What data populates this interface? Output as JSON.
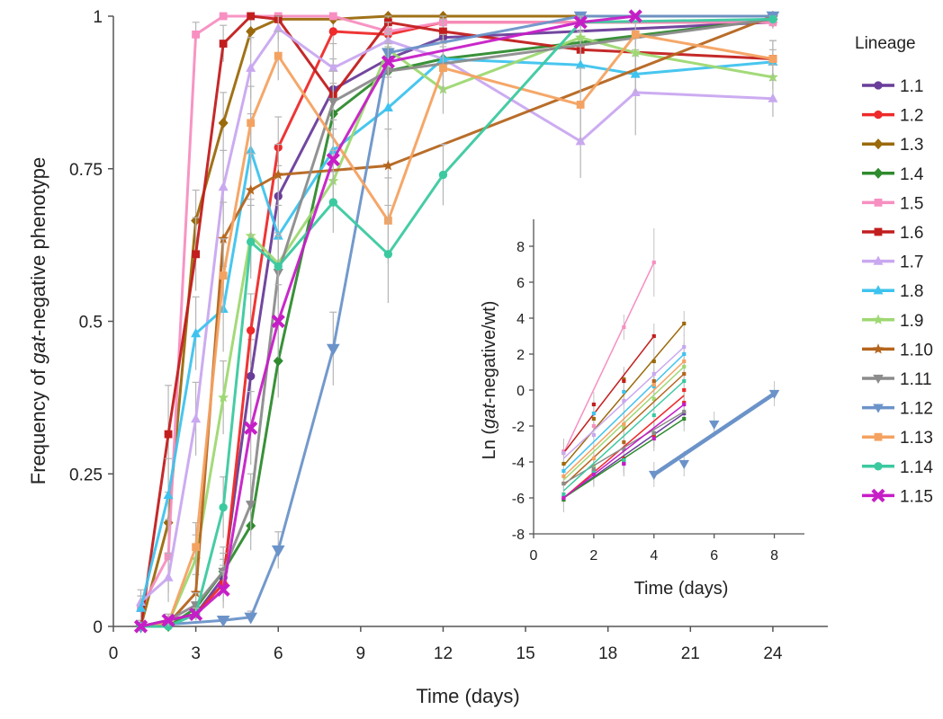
{
  "chart_data": [
    {
      "type": "line",
      "xlabel": "Time (days)",
      "ylabel_parts": [
        "Frequency of ",
        "gat",
        "-negative phenotype"
      ],
      "xlim": [
        0,
        26
      ],
      "ylim": [
        0,
        1
      ],
      "xticks": [
        0,
        3,
        6,
        9,
        12,
        15,
        18,
        21,
        24
      ],
      "yticks": [
        0,
        0.25,
        0.5,
        0.75,
        1
      ],
      "ytick_labels": [
        "0",
        "0.25",
        "0.5",
        "0.75",
        "1"
      ],
      "legend_title": "Lineage",
      "legend_position": "right",
      "series": [
        {
          "name": "1.1",
          "color": "#6a3d9a",
          "marker": "circle",
          "x": [
            1,
            2,
            3,
            4,
            5,
            6,
            8,
            10,
            12,
            24
          ],
          "y": [
            0.0,
            0.01,
            0.02,
            0.08,
            0.41,
            0.705,
            0.88,
            0.93,
            0.965,
            0.99
          ],
          "err": [
            0.005,
            0.01,
            0.01,
            0.03,
            0.06,
            0.05,
            0.05,
            0.03,
            0.02,
            0.01
          ]
        },
        {
          "name": "1.2",
          "color": "#ee2a2a",
          "marker": "circle",
          "x": [
            1,
            2,
            3,
            4,
            5,
            6,
            8,
            10,
            12,
            24
          ],
          "y": [
            0.0,
            0.01,
            0.02,
            0.07,
            0.485,
            0.785,
            0.975,
            0.97,
            0.99,
            0.99
          ],
          "err": [
            0.005,
            0.01,
            0.01,
            0.03,
            0.06,
            0.05,
            0.02,
            0.02,
            0.01,
            0.01
          ]
        },
        {
          "name": "1.3",
          "color": "#9b6a0c",
          "marker": "diamond",
          "x": [
            1,
            2,
            3,
            4,
            5,
            6,
            8,
            10,
            12,
            24
          ],
          "y": [
            0.0,
            0.17,
            0.665,
            0.825,
            0.975,
            0.995,
            0.995,
            1.0,
            1.0,
            1.0
          ],
          "err": [
            0.01,
            0.05,
            0.05,
            0.05,
            0.02,
            0.01,
            0.01,
            0.0,
            0.0,
            0.0
          ]
        },
        {
          "name": "1.4",
          "color": "#2e8b2e",
          "marker": "diamond",
          "x": [
            1,
            2,
            3,
            4,
            5,
            6,
            8,
            10,
            12,
            24
          ],
          "y": [
            0.0,
            0.0,
            0.03,
            0.09,
            0.165,
            0.435,
            0.84,
            0.91,
            0.93,
            0.995
          ],
          "err": [
            0.005,
            0.005,
            0.01,
            0.03,
            0.04,
            0.06,
            0.05,
            0.03,
            0.02,
            0.01
          ]
        },
        {
          "name": "1.5",
          "color": "#f78fc1",
          "marker": "square",
          "x": [
            1,
            2,
            3,
            4,
            5,
            6,
            8,
            10,
            12,
            24
          ],
          "y": [
            0.03,
            0.115,
            0.97,
            1.0,
            1.0,
            1.0,
            1.0,
            0.975,
            0.99,
            0.99
          ],
          "err": [
            0.02,
            0.06,
            0.02,
            0.0,
            0.0,
            0.0,
            0.0,
            0.02,
            0.01,
            0.01
          ]
        },
        {
          "name": "1.6",
          "color": "#c21e1e",
          "marker": "square",
          "x": [
            1,
            2,
            3,
            4,
            5,
            6,
            8,
            10,
            12,
            17,
            24
          ],
          "y": [
            0.0,
            0.315,
            0.61,
            0.955,
            1.0,
            0.995,
            0.87,
            0.99,
            0.975,
            0.945,
            0.93
          ],
          "err": [
            0.01,
            0.08,
            0.06,
            0.03,
            0.0,
            0.01,
            0.05,
            0.01,
            0.02,
            0.03,
            0.03
          ]
        },
        {
          "name": "1.7",
          "color": "#c9a8f0",
          "marker": "triangle",
          "x": [
            1,
            2,
            3,
            4,
            5,
            6,
            8,
            10,
            12,
            17,
            19,
            24
          ],
          "y": [
            0.04,
            0.08,
            0.34,
            0.72,
            0.915,
            0.98,
            0.915,
            0.96,
            0.93,
            0.795,
            0.875,
            0.865
          ],
          "err": [
            0.02,
            0.04,
            0.06,
            0.06,
            0.05,
            0.02,
            0.04,
            0.03,
            0.04,
            0.06,
            0.07,
            0.03
          ]
        },
        {
          "name": "1.8",
          "color": "#3ec3ee",
          "marker": "triangle",
          "x": [
            1,
            2,
            3,
            4,
            5,
            6,
            8,
            10,
            12,
            17,
            19,
            24
          ],
          "y": [
            0.03,
            0.215,
            0.48,
            0.52,
            0.78,
            0.64,
            0.78,
            0.85,
            0.93,
            0.92,
            0.905,
            0.925
          ],
          "err": [
            0.02,
            0.06,
            0.06,
            0.07,
            0.06,
            0.05,
            0.05,
            0.05,
            0.03,
            0.03,
            0.03,
            0.02
          ]
        },
        {
          "name": "1.9",
          "color": "#9ed872",
          "marker": "star",
          "x": [
            1,
            2,
            3,
            4,
            5,
            6,
            8,
            10,
            12,
            17,
            19,
            24
          ],
          "y": [
            0.0,
            0.005,
            0.11,
            0.375,
            0.64,
            0.595,
            0.73,
            0.945,
            0.88,
            0.965,
            0.94,
            0.9
          ],
          "err": [
            0.005,
            0.01,
            0.04,
            0.06,
            0.06,
            0.05,
            0.05,
            0.03,
            0.04,
            0.02,
            0.03,
            0.02
          ]
        },
        {
          "name": "1.10",
          "color": "#b5651d",
          "marker": "star",
          "x": [
            1,
            2,
            3,
            4,
            5,
            6,
            10,
            24
          ],
          "y": [
            0.0,
            0.005,
            0.055,
            0.635,
            0.715,
            0.74,
            0.755,
            1.0
          ],
          "err": [
            0.005,
            0.01,
            0.03,
            0.06,
            0.06,
            0.05,
            0.06,
            0.0
          ]
        },
        {
          "name": "1.11",
          "color": "#8c8c8c",
          "marker": "down-triangle",
          "x": [
            1,
            2,
            3,
            4,
            5,
            6,
            8,
            10,
            24
          ],
          "y": [
            0.0,
            0.01,
            0.035,
            0.09,
            0.2,
            0.58,
            0.86,
            0.91,
            0.995
          ],
          "err": [
            0.005,
            0.01,
            0.02,
            0.04,
            0.05,
            0.06,
            0.05,
            0.04,
            0.01
          ]
        },
        {
          "name": "1.12",
          "color": "#6b93c9",
          "marker": "down-triangle",
          "x": [
            1,
            4,
            5,
            6,
            8,
            10,
            17,
            24
          ],
          "y": [
            0.0,
            0.01,
            0.015,
            0.125,
            0.455,
            0.94,
            1.0,
            1.0
          ],
          "err": [
            0.005,
            0.005,
            0.01,
            0.03,
            0.06,
            0.03,
            0.0,
            0.0
          ]
        },
        {
          "name": "1.13",
          "color": "#f4a261",
          "marker": "square",
          "x": [
            1,
            2,
            3,
            4,
            5,
            6,
            10,
            12,
            17,
            19,
            24
          ],
          "y": [
            0.0,
            0.005,
            0.13,
            0.575,
            0.825,
            0.935,
            0.665,
            0.915,
            0.855,
            0.97,
            0.93
          ],
          "err": [
            0.005,
            0.01,
            0.04,
            0.06,
            0.06,
            0.04,
            0.07,
            0.04,
            0.06,
            0.02,
            0.03
          ]
        },
        {
          "name": "1.14",
          "color": "#3cc9a0",
          "marker": "circle",
          "x": [
            1,
            2,
            3,
            4,
            5,
            6,
            8,
            10,
            12,
            17,
            24
          ],
          "y": [
            0.0,
            0.0,
            0.02,
            0.195,
            0.63,
            0.59,
            0.695,
            0.61,
            0.74,
            0.99,
            0.995
          ],
          "err": [
            0.005,
            0.005,
            0.01,
            0.05,
            0.06,
            0.05,
            0.05,
            0.08,
            0.05,
            0.01,
            0.01
          ]
        },
        {
          "name": "1.15",
          "color": "#c61ec6",
          "marker": "x",
          "x": [
            1,
            2,
            3,
            4,
            5,
            6,
            8,
            10,
            17,
            19
          ],
          "y": [
            0.0,
            0.01,
            0.02,
            0.06,
            0.325,
            0.5,
            0.765,
            0.925,
            0.99,
            1.0
          ],
          "err": [
            0.005,
            0.01,
            0.01,
            0.03,
            0.06,
            0.06,
            0.05,
            0.03,
            0.01,
            0.0
          ]
        }
      ]
    },
    {
      "type": "line",
      "xlabel": "Time (days)",
      "ylabel_parts": [
        "Ln (",
        "gat",
        "-negative/wt)"
      ],
      "xlim": [
        0,
        9
      ],
      "ylim": [
        -8,
        9.5
      ],
      "xticks": [
        0,
        2,
        4,
        6,
        8
      ],
      "yticks": [
        -8,
        -6,
        -4,
        -2,
        0,
        2,
        4,
        6,
        8
      ],
      "series": [
        {
          "name": "1.1",
          "x": [
            1,
            5
          ],
          "y": [
            -6.0,
            -1.3
          ],
          "points": [
            [
              1,
              -6.0
            ],
            [
              2,
              -4.6
            ],
            [
              3,
              -4.1
            ],
            [
              4,
              -2.4
            ],
            [
              5,
              -1.3
            ]
          ]
        },
        {
          "name": "1.2",
          "x": [
            1,
            5
          ],
          "y": [
            -6.0,
            -0.3
          ],
          "points": [
            [
              1,
              -6.1
            ],
            [
              2,
              -4.6
            ],
            [
              3,
              -3.8
            ],
            [
              4,
              -2.5
            ],
            [
              5,
              0.0
            ],
            [
              5,
              -0.7
            ]
          ]
        },
        {
          "name": "1.3",
          "x": [
            1,
            5
          ],
          "y": [
            -4.2,
            3.7
          ],
          "points": [
            [
              1,
              -4.1
            ],
            [
              2,
              -1.6
            ],
            [
              3,
              0.6
            ],
            [
              4,
              1.6
            ],
            [
              5,
              3.7
            ]
          ]
        },
        {
          "name": "1.4",
          "x": [
            1,
            5
          ],
          "y": [
            -6.0,
            -1.6
          ],
          "points": [
            [
              1,
              -6.1
            ],
            [
              2,
              -4.4
            ],
            [
              3,
              -3.9
            ],
            [
              4,
              -2.4
            ],
            [
              5,
              -1.6
            ]
          ]
        },
        {
          "name": "1.5",
          "x": [
            1,
            4
          ],
          "y": [
            -3.5,
            7.1
          ],
          "points": [
            [
              1,
              -3.4
            ],
            [
              2,
              -2.0
            ],
            [
              3,
              3.5
            ],
            [
              4,
              7.1
            ]
          ]
        },
        {
          "name": "1.6",
          "x": [
            1,
            4
          ],
          "y": [
            -3.5,
            3.0
          ],
          "points": [
            [
              1,
              -3.5
            ],
            [
              2,
              -0.8
            ],
            [
              3,
              0.5
            ],
            [
              4,
              3.0
            ]
          ]
        },
        {
          "name": "1.7",
          "x": [
            1,
            5
          ],
          "y": [
            -3.8,
            2.4
          ],
          "points": [
            [
              1,
              -3.5
            ],
            [
              2,
              -2.5
            ],
            [
              3,
              -0.6
            ],
            [
              4,
              0.9
            ],
            [
              5,
              2.4
            ]
          ]
        },
        {
          "name": "1.8",
          "x": [
            1,
            5
          ],
          "y": [
            -4.5,
            2.0
          ],
          "points": [
            [
              1,
              -4.5
            ],
            [
              2,
              -1.3
            ],
            [
              3,
              -0.1
            ],
            [
              4,
              0.2
            ],
            [
              5,
              2.0
            ]
          ]
        },
        {
          "name": "1.9",
          "x": [
            1,
            5
          ],
          "y": [
            -5.0,
            1.3
          ],
          "points": [
            [
              1,
              -5.2
            ],
            [
              2,
              -4.2
            ],
            [
              3,
              -2.1
            ],
            [
              4,
              -0.5
            ],
            [
              5,
              1.3
            ]
          ]
        },
        {
          "name": "1.10",
          "x": [
            1,
            5
          ],
          "y": [
            -5.3,
            0.9
          ],
          "points": [
            [
              1,
              -5.2
            ],
            [
              2,
              -4.5
            ],
            [
              3,
              -2.9
            ],
            [
              4,
              0.5
            ],
            [
              5,
              0.9
            ]
          ]
        },
        {
          "name": "1.11",
          "x": [
            1,
            5
          ],
          "y": [
            -5.2,
            -1.2
          ],
          "points": [
            [
              1,
              -5.2
            ],
            [
              2,
              -4.4
            ],
            [
              3,
              -3.3
            ],
            [
              4,
              -2.4
            ],
            [
              5,
              -1.2
            ]
          ]
        },
        {
          "name": "1.12",
          "x": [
            4,
            8
          ],
          "y": [
            -4.7,
            -0.2
          ],
          "points": [
            [
              4,
              -4.7
            ],
            [
              5,
              -4.1
            ],
            [
              6,
              -1.9
            ],
            [
              8,
              -0.2
            ]
          ]
        },
        {
          "name": "1.13",
          "x": [
            1,
            5
          ],
          "y": [
            -4.8,
            1.6
          ],
          "points": [
            [
              1,
              -4.8
            ],
            [
              2,
              -3.8
            ],
            [
              3,
              -1.9
            ],
            [
              4,
              0.3
            ],
            [
              5,
              1.6
            ]
          ]
        },
        {
          "name": "1.14",
          "x": [
            1,
            5
          ],
          "y": [
            -5.6,
            0.5
          ],
          "points": [
            [
              1,
              -5.8
            ],
            [
              2,
              -4.6
            ],
            [
              3,
              -3.9
            ],
            [
              4,
              -1.4
            ],
            [
              5,
              0.5
            ]
          ]
        },
        {
          "name": "1.15",
          "x": [
            1,
            5
          ],
          "y": [
            -6.0,
            -0.8
          ],
          "points": [
            [
              1,
              -6.0
            ],
            [
              2,
              -4.7
            ],
            [
              3,
              -4.1
            ],
            [
              4,
              -2.7
            ],
            [
              5,
              -0.8
            ]
          ]
        }
      ]
    }
  ]
}
